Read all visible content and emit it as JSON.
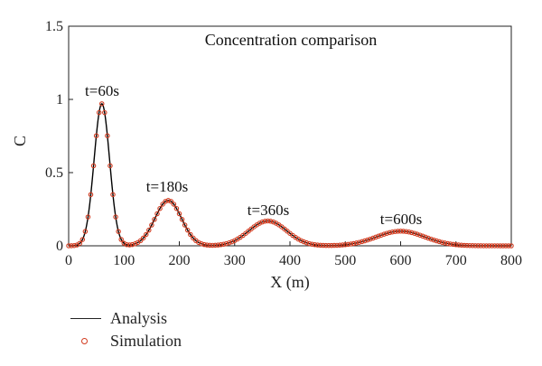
{
  "chart_data": {
    "type": "line",
    "title": "Concentration comparison",
    "xlabel": "X (m)",
    "ylabel": "C",
    "xlim": [
      0,
      800
    ],
    "ylim": [
      0,
      1.5
    ],
    "x_ticks": [
      0,
      100,
      200,
      300,
      400,
      500,
      600,
      700,
      800
    ],
    "y_ticks": [
      0,
      0.5,
      1,
      1.5
    ],
    "y_tick_labels": [
      "0",
      "0.5",
      "1",
      "1.5"
    ],
    "grid": false,
    "legend_placement": "bottom-left",
    "colors": {
      "analysis": "#000000",
      "simulation": "#d23b1f"
    },
    "annotations": [
      "t=60s",
      "t=180s",
      "t=360s",
      "t=600s"
    ],
    "peaks": [
      {
        "time": "t=60s",
        "x": 60,
        "peak": 0.97,
        "sigma": 14
      },
      {
        "time": "t=180s",
        "x": 180,
        "peak": 0.31,
        "sigma": 24
      },
      {
        "time": "t=360s",
        "x": 360,
        "peak": 0.17,
        "sigma": 34
      },
      {
        "time": "t=600s",
        "x": 600,
        "peak": 0.1,
        "sigma": 44
      }
    ],
    "series": [
      {
        "name": "Analysis",
        "style": "line"
      },
      {
        "name": "Simulation",
        "style": "open-circle-markers"
      }
    ],
    "sample_step_m": 5
  }
}
